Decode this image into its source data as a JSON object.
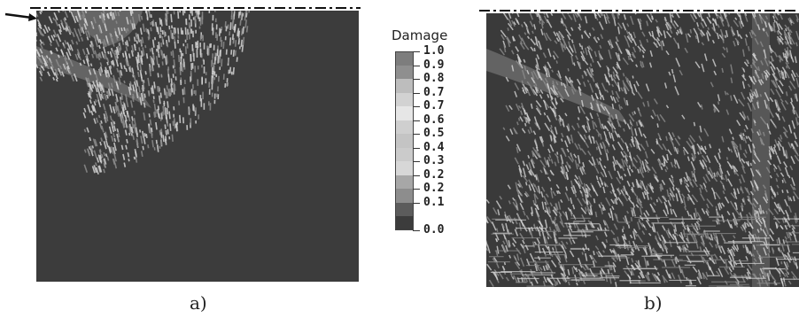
{
  "figure": {
    "legend": {
      "title": "Damage",
      "labels": [
        "1.0",
        "0.9",
        "0.8",
        "0.7",
        "0.7",
        "0.6",
        "0.5",
        "0.4",
        "0.3",
        "0.2",
        "0.2",
        "0.1",
        "0.0"
      ],
      "colors": [
        "#7d7d7d",
        "#8f8f8f",
        "#bdbdbd",
        "#d2d2d2",
        "#e6e6e6",
        "#cfcfcf",
        "#c4c4c4",
        "#cbcbcb",
        "#d7d7d7",
        "#a7a7a7",
        "#8d8d8d",
        "#5c5c5c",
        "#3c3c3c"
      ]
    },
    "panels": [
      {
        "caption": "a)"
      },
      {
        "caption": "b)"
      }
    ],
    "colors": {
      "background_material": "#3c3c3c",
      "damage_light": "#d4d4d4",
      "damage_mid": "#8c8c8c"
    },
    "icons": [
      "arrow-right-icon"
    ]
  }
}
